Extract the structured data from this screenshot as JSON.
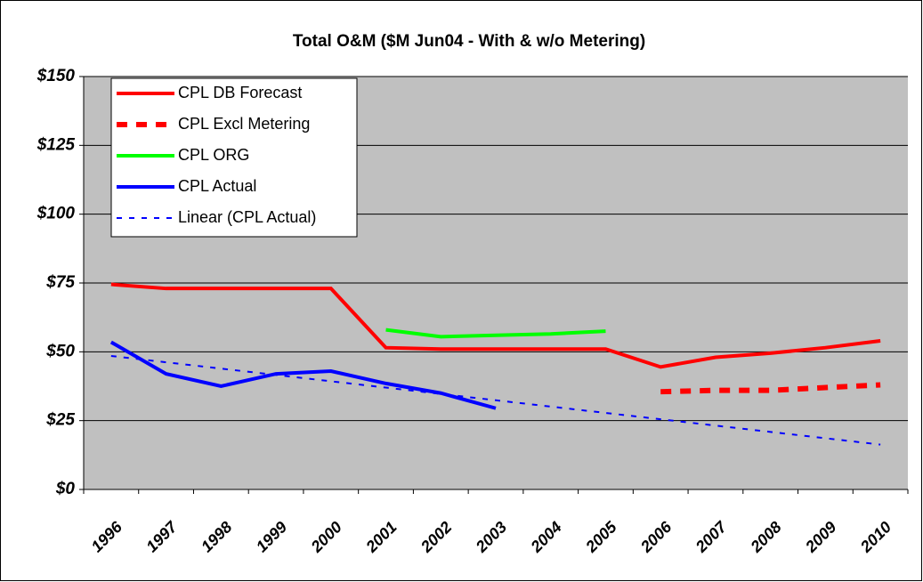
{
  "chart_data": {
    "type": "line",
    "title": "Total O&M ($M Jun04 - With & w/o Metering)",
    "categories": [
      "1996",
      "1997",
      "1998",
      "1999",
      "2000",
      "2001",
      "2002",
      "2003",
      "2004",
      "2005",
      "2006",
      "2007",
      "2008",
      "2009",
      "2010"
    ],
    "series": [
      {
        "name": "CPL DB Forecast",
        "color": "#ff0000",
        "line_style": "solid",
        "values": [
          74.5,
          73,
          73,
          73,
          73,
          51.5,
          51,
          51,
          51,
          51,
          44.5,
          48,
          49.5,
          51.5,
          54
        ]
      },
      {
        "name": "CPL Excl Metering",
        "color": "#ff0000",
        "line_style": "dashed",
        "values": [
          null,
          null,
          null,
          null,
          null,
          null,
          null,
          null,
          null,
          null,
          35.5,
          36,
          36,
          37,
          38
        ]
      },
      {
        "name": "CPL ORG",
        "color": "#00ff00",
        "line_style": "solid",
        "values": [
          null,
          null,
          null,
          null,
          null,
          58,
          55.5,
          56,
          56.5,
          57.5,
          null,
          null,
          null,
          null,
          null
        ]
      },
      {
        "name": "CPL Actual",
        "color": "#0000ff",
        "line_style": "solid",
        "values": [
          53.5,
          42,
          37.5,
          42,
          43,
          38.5,
          35,
          29.5,
          null,
          null,
          null,
          null,
          null,
          null,
          null
        ]
      },
      {
        "name": "Linear (CPL Actual)",
        "color": "#0000ff",
        "line_style": "dotted",
        "values": [
          48.5,
          46.2,
          43.9,
          41.6,
          39.3,
          37,
          34.7,
          32.4,
          30.1,
          27.8,
          25.5,
          23.2,
          20.9,
          18.6,
          16.3
        ]
      }
    ],
    "ylim": [
      0,
      150
    ],
    "yticks": [
      {
        "value": 0,
        "label": "$0"
      },
      {
        "value": 25,
        "label": "$25"
      },
      {
        "value": 50,
        "label": "$50"
      },
      {
        "value": 75,
        "label": "$75"
      },
      {
        "value": 100,
        "label": "$100"
      },
      {
        "value": 125,
        "label": "$125"
      },
      {
        "value": 150,
        "label": "$150"
      }
    ],
    "grid": true,
    "legend": "upper left",
    "background": "#c0c0c0"
  }
}
